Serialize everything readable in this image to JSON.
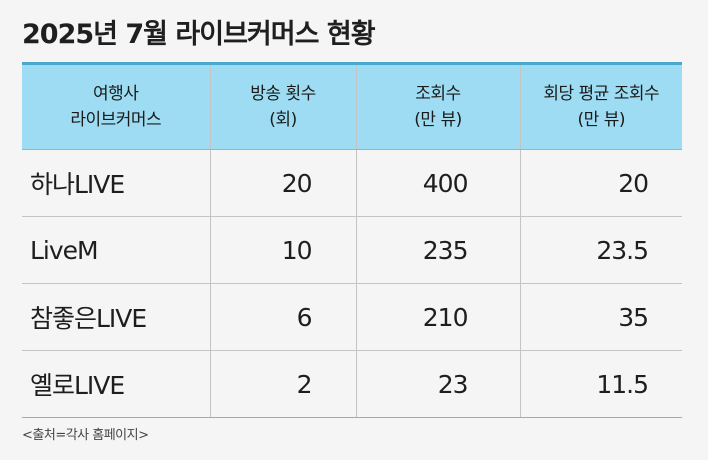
{
  "title": "2025년 7월 라이브커머스 현황",
  "table": {
    "headers": [
      {
        "line1": "여행사",
        "line2": "라이브커머스"
      },
      {
        "line1": "방송 횟수",
        "line2": "(회)"
      },
      {
        "line1": "조회수",
        "line2": "(만 뷰)"
      },
      {
        "line1": "회당 평균 조회수",
        "line2": "(만 뷰)"
      }
    ],
    "rows": [
      {
        "name": "하나LIVE",
        "broadcasts": "20",
        "views": "400",
        "avg_views": "20"
      },
      {
        "name": "LiveM",
        "broadcasts": "10",
        "views": "235",
        "avg_views": "23.5"
      },
      {
        "name": "참좋은LIVE",
        "broadcasts": "6",
        "views": "210",
        "avg_views": "35"
      },
      {
        "name": "옐로LIVE",
        "broadcasts": "2",
        "views": "23",
        "avg_views": "11.5"
      }
    ]
  },
  "source": "<출처=각사 홈페이지>",
  "colors": {
    "header_bg": "#9ddcf2",
    "header_top_border": "#4aa8cf",
    "page_bg": "#f5f5f5"
  }
}
